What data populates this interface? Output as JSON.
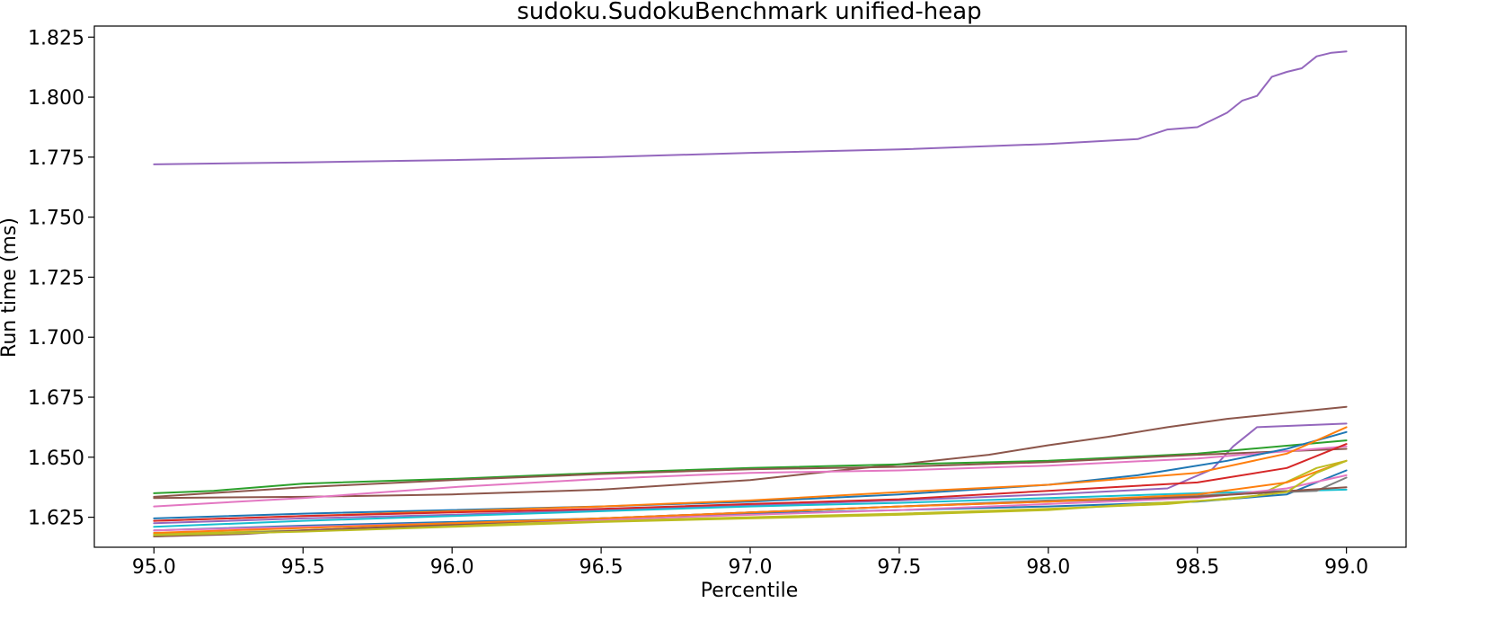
{
  "chart_data": {
    "type": "line",
    "title": "sudoku.SudokuBenchmark unified-heap",
    "xlabel": "Percentile",
    "ylabel": "Run time (ms)",
    "xlim": [
      94.8,
      99.2
    ],
    "ylim": [
      1.6125,
      1.8296
    ],
    "xticks": [
      95.0,
      95.5,
      96.0,
      96.5,
      97.0,
      97.5,
      98.0,
      98.5,
      99.0
    ],
    "xtick_labels": [
      "95.0",
      "95.5",
      "96.0",
      "96.5",
      "97.0",
      "97.5",
      "98.0",
      "98.5",
      "99.0"
    ],
    "yticks": [
      1.625,
      1.65,
      1.675,
      1.7,
      1.725,
      1.75,
      1.775,
      1.8,
      1.825
    ],
    "ytick_labels": [
      "1.625",
      "1.650",
      "1.675",
      "1.700",
      "1.725",
      "1.750",
      "1.775",
      "1.800",
      "1.825"
    ],
    "grid": false,
    "legend": "none",
    "series": [
      {
        "color": "#9467bd",
        "x": [
          95.0,
          95.5,
          96.0,
          96.5,
          97.0,
          97.5,
          98.0,
          98.3,
          98.4,
          98.5,
          98.55,
          98.6,
          98.65,
          98.7,
          98.75,
          98.8,
          98.85,
          98.9,
          98.95,
          99.0
        ],
        "y": [
          1.772,
          1.7728,
          1.7738,
          1.775,
          1.7768,
          1.7782,
          1.7805,
          1.7825,
          1.7865,
          1.7875,
          1.7905,
          1.7935,
          1.7985,
          1.8005,
          1.8085,
          1.8105,
          1.812,
          1.817,
          1.8185,
          1.819
        ]
      },
      {
        "color": "#8c564b",
        "x": [
          95.0,
          95.5,
          96.0,
          96.5,
          97.0,
          97.3,
          97.5,
          97.8,
          98.0,
          98.2,
          98.4,
          98.6,
          98.8,
          99.0
        ],
        "y": [
          1.633,
          1.6335,
          1.6345,
          1.6365,
          1.6405,
          1.6445,
          1.647,
          1.651,
          1.655,
          1.6585,
          1.6625,
          1.666,
          1.6685,
          1.671
        ]
      },
      {
        "color": "#9467bd",
        "x": [
          95.0,
          95.5,
          96.0,
          96.5,
          97.0,
          97.5,
          98.0,
          98.4,
          98.55,
          98.62,
          98.7,
          99.0
        ],
        "y": [
          1.6225,
          1.6245,
          1.626,
          1.628,
          1.63,
          1.632,
          1.6345,
          1.637,
          1.645,
          1.6545,
          1.6625,
          1.664
        ]
      },
      {
        "color": "#2ca02c",
        "x": [
          95.0,
          95.2,
          95.5,
          96.0,
          96.5,
          97.0,
          97.5,
          98.0,
          98.5,
          99.0
        ],
        "y": [
          1.635,
          1.636,
          1.639,
          1.641,
          1.6435,
          1.6455,
          1.647,
          1.6485,
          1.6515,
          1.657
        ]
      },
      {
        "color": "#8c564b",
        "x": [
          95.0,
          95.5,
          96.0,
          96.5,
          97.0,
          97.5,
          98.0,
          98.5,
          99.0
        ],
        "y": [
          1.6335,
          1.6375,
          1.6405,
          1.643,
          1.645,
          1.646,
          1.648,
          1.651,
          1.6535
        ]
      },
      {
        "color": "#e377c2",
        "x": [
          95.0,
          95.5,
          96.0,
          96.5,
          97.0,
          97.5,
          98.0,
          98.5,
          99.0
        ],
        "y": [
          1.6295,
          1.633,
          1.6375,
          1.641,
          1.6435,
          1.6445,
          1.6465,
          1.6495,
          1.6545
        ]
      },
      {
        "color": "#1f77b4",
        "x": [
          95.0,
          95.5,
          96.0,
          96.5,
          97.0,
          97.5,
          98.0,
          98.3,
          98.6,
          98.8,
          99.0
        ],
        "y": [
          1.6245,
          1.6265,
          1.628,
          1.6295,
          1.6315,
          1.6345,
          1.6385,
          1.6425,
          1.6485,
          1.6535,
          1.6605
        ]
      },
      {
        "color": "#ff7f0e",
        "x": [
          95.0,
          95.5,
          96.0,
          96.5,
          97.0,
          97.5,
          98.0,
          98.5,
          98.8,
          99.0
        ],
        "y": [
          1.6235,
          1.6255,
          1.6275,
          1.6295,
          1.632,
          1.6355,
          1.6385,
          1.6435,
          1.6515,
          1.6625
        ]
      },
      {
        "color": "#d62728",
        "x": [
          95.0,
          95.5,
          96.0,
          96.5,
          97.0,
          97.5,
          98.0,
          98.5,
          98.8,
          99.0
        ],
        "y": [
          1.6235,
          1.6255,
          1.627,
          1.6285,
          1.6305,
          1.6325,
          1.636,
          1.6395,
          1.6455,
          1.6555
        ]
      },
      {
        "color": "#17becf",
        "x": [
          95.0,
          95.5,
          96.0,
          96.5,
          97.0,
          97.5,
          98.0,
          98.5,
          99.0
        ],
        "y": [
          1.621,
          1.6235,
          1.6255,
          1.6275,
          1.6295,
          1.631,
          1.633,
          1.635,
          1.6365
        ]
      },
      {
        "color": "#1f77b4",
        "x": [
          95.0,
          95.5,
          96.0,
          96.5,
          97.0,
          97.5,
          98.0,
          98.5,
          98.8,
          99.0
        ],
        "y": [
          1.6195,
          1.6215,
          1.623,
          1.6245,
          1.6265,
          1.628,
          1.6295,
          1.6315,
          1.6345,
          1.6445
        ]
      },
      {
        "color": "#bcbd22",
        "x": [
          95.0,
          95.5,
          96.0,
          96.5,
          97.0,
          97.5,
          98.0,
          98.4,
          98.7,
          98.9,
          99.0
        ],
        "y": [
          1.618,
          1.6195,
          1.6215,
          1.6235,
          1.625,
          1.6265,
          1.6285,
          1.6305,
          1.634,
          1.6455,
          1.6485
        ]
      },
      {
        "color": "#7f7f7f",
        "x": [
          95.0,
          95.5,
          96.0,
          96.5,
          97.0,
          97.5,
          98.0,
          98.5,
          98.9,
          99.0
        ],
        "y": [
          1.617,
          1.6195,
          1.622,
          1.6245,
          1.627,
          1.6295,
          1.632,
          1.634,
          1.636,
          1.6415
        ]
      },
      {
        "color": "#e377c2",
        "x": [
          95.0,
          95.5,
          96.0,
          96.5,
          97.0,
          97.5,
          98.0,
          98.5,
          98.8,
          99.0
        ],
        "y": [
          1.6195,
          1.621,
          1.6225,
          1.624,
          1.626,
          1.628,
          1.6305,
          1.633,
          1.637,
          1.6425
        ]
      },
      {
        "color": "#8c564b",
        "x": [
          95.0,
          95.3,
          95.5,
          96.0,
          96.5,
          97.0,
          97.5,
          98.0,
          98.5,
          99.0
        ],
        "y": [
          1.617,
          1.618,
          1.6195,
          1.622,
          1.6245,
          1.627,
          1.6295,
          1.6315,
          1.6335,
          1.6375
        ]
      },
      {
        "color": "#ff7f0e",
        "x": [
          95.0,
          95.5,
          96.0,
          96.5,
          97.0,
          97.5,
          98.0,
          98.5,
          98.8,
          99.0
        ],
        "y": [
          1.6185,
          1.6205,
          1.6225,
          1.6245,
          1.627,
          1.6295,
          1.6315,
          1.6345,
          1.6395,
          1.6485
        ]
      },
      {
        "color": "#bcbd22",
        "x": [
          95.0,
          95.5,
          96.0,
          96.5,
          97.0,
          97.5,
          98.0,
          98.3,
          98.6,
          98.8,
          98.9,
          99.0
        ],
        "y": [
          1.6175,
          1.619,
          1.621,
          1.623,
          1.6245,
          1.626,
          1.628,
          1.6305,
          1.6325,
          1.6355,
          1.6435,
          1.6485
        ]
      }
    ]
  }
}
